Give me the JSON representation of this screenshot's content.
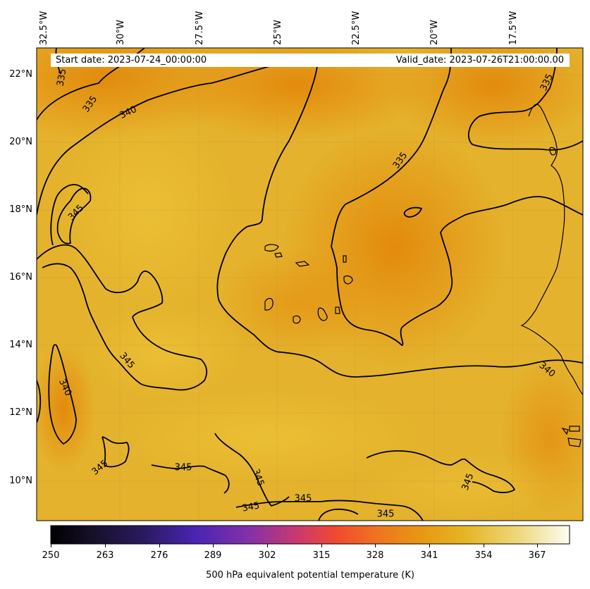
{
  "header": {
    "start_date": "Start date: 2023-07-24_00:00:00",
    "valid_date": "Valid_date: 2023-07-26T21:00:00.00"
  },
  "axes": {
    "longitude_labels": [
      "32.5°W",
      "30°W",
      "27.5°W",
      "25°W",
      "22.5°W",
      "20°W",
      "17.5°W"
    ],
    "latitude_labels": [
      "22°N",
      "20°N",
      "18°N",
      "16°N",
      "14°N",
      "12°N",
      "10°N"
    ]
  },
  "contours": {
    "labels": [
      "335",
      "335",
      "340",
      "345",
      "345",
      "340",
      "335",
      "335",
      "340",
      "345",
      "345",
      "345",
      "345",
      "345",
      "345",
      "345"
    ]
  },
  "colorbar": {
    "ticks": [
      "250",
      "263",
      "276",
      "289",
      "302",
      "315",
      "328",
      "341",
      "354",
      "367"
    ],
    "title": "500 hPa equivalent potential temperature (K)",
    "colors": [
      "#000000",
      "#1a1030",
      "#2c1a66",
      "#4a22b0",
      "#7a2fb8",
      "#b0358a",
      "#e5484f",
      "#f0602a",
      "#e88d10",
      "#e6b020",
      "#ecd870",
      "#fbfbe8"
    ]
  },
  "colors": {
    "field_base": "#e4b32a",
    "field_warm": "#e3900c",
    "contour": "#000000"
  }
}
